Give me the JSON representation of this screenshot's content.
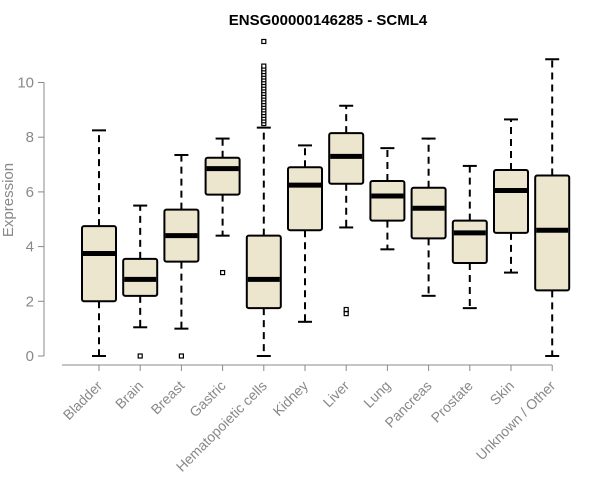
{
  "chart_data": {
    "type": "boxplot",
    "title": "ENSG00000146285 - SCML4",
    "xlabel": "",
    "ylabel": "Expression",
    "ylim": [
      0,
      11.5
    ],
    "yticks": [
      0,
      2,
      4,
      6,
      8,
      10
    ],
    "colors": {
      "box_fill": "#ede6cf",
      "stroke": "#000000",
      "axis": "#888888",
      "median": "#000000"
    },
    "categories": [
      "Bladder",
      "Brain",
      "Breast",
      "Gastric",
      "Hematopoietic cells",
      "Kidney",
      "Liver",
      "Lung",
      "Pancreas",
      "Prostate",
      "Skin",
      "Unknown / Other"
    ],
    "boxes": [
      {
        "label": "Bladder",
        "min": 0.0,
        "q1": 2.0,
        "median": 3.75,
        "q3": 4.75,
        "max": 8.25,
        "outliers": []
      },
      {
        "label": "Brain",
        "min": 1.05,
        "q1": 2.2,
        "median": 2.8,
        "q3": 3.55,
        "max": 5.5,
        "outliers": [
          0.0
        ]
      },
      {
        "label": "Breast",
        "min": 1.0,
        "q1": 3.45,
        "median": 4.4,
        "q3": 5.35,
        "max": 7.35,
        "outliers": [
          0.0
        ]
      },
      {
        "label": "Gastric",
        "min": 4.4,
        "q1": 5.9,
        "median": 6.85,
        "q3": 7.25,
        "max": 7.95,
        "outliers": [
          3.05
        ]
      },
      {
        "label": "Hematopoietic cells",
        "min": 0.0,
        "q1": 1.75,
        "median": 2.8,
        "q3": 4.4,
        "max": 8.35,
        "outliers": [
          8.5,
          8.6,
          8.7,
          8.8,
          8.9,
          9.0,
          9.1,
          9.2,
          9.3,
          9.4,
          9.5,
          9.6,
          9.7,
          9.8,
          9.9,
          10.0,
          10.1,
          10.2,
          10.3,
          10.4,
          10.5,
          10.6,
          11.5
        ]
      },
      {
        "label": "Kidney",
        "min": 1.25,
        "q1": 4.6,
        "median": 6.25,
        "q3": 6.9,
        "max": 7.7,
        "outliers": []
      },
      {
        "label": "Liver",
        "min": 4.7,
        "q1": 6.3,
        "median": 7.3,
        "q3": 8.15,
        "max": 9.15,
        "outliers": [
          1.55,
          1.7
        ]
      },
      {
        "label": "Lung",
        "min": 3.9,
        "q1": 4.95,
        "median": 5.85,
        "q3": 6.4,
        "max": 7.6,
        "outliers": []
      },
      {
        "label": "Pancreas",
        "min": 2.2,
        "q1": 4.3,
        "median": 5.4,
        "q3": 6.15,
        "max": 7.95,
        "outliers": []
      },
      {
        "label": "Prostate",
        "min": 1.75,
        "q1": 3.4,
        "median": 4.5,
        "q3": 4.95,
        "max": 6.95,
        "outliers": []
      },
      {
        "label": "Skin",
        "min": 3.05,
        "q1": 4.5,
        "median": 6.05,
        "q3": 6.8,
        "max": 8.65,
        "outliers": []
      },
      {
        "label": "Unknown / Other",
        "min": 0.0,
        "q1": 2.4,
        "median": 4.6,
        "q3": 6.6,
        "max": 10.85,
        "outliers": []
      }
    ]
  }
}
